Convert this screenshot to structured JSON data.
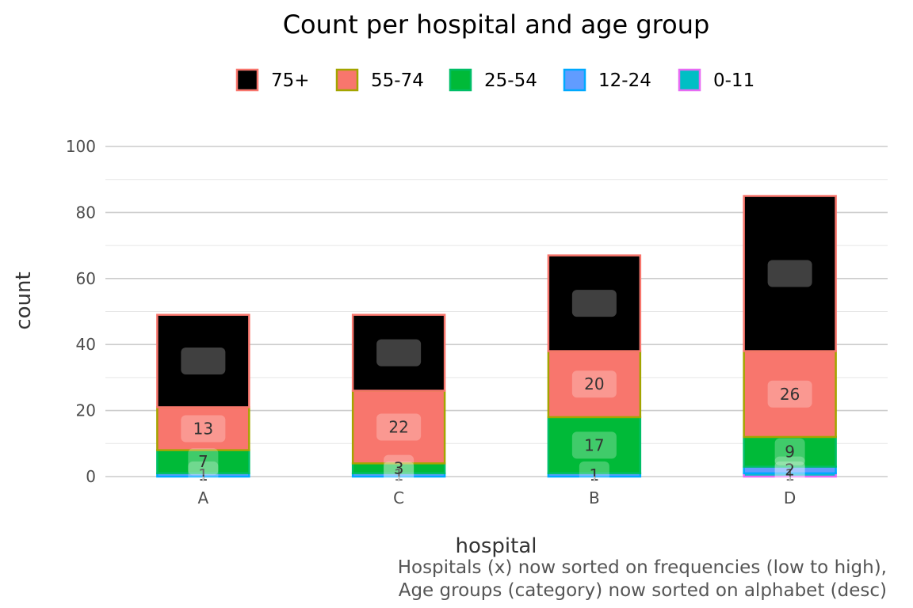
{
  "chart_data": {
    "type": "bar",
    "stacked": true,
    "title": "Count per hospital and age group",
    "xlabel": "hospital",
    "ylabel": "count",
    "ylim": [
      0,
      100
    ],
    "yticks": [
      0,
      20,
      40,
      60,
      80,
      100
    ],
    "grid": true,
    "legend_position": "top",
    "categories": [
      "A",
      "C",
      "B",
      "D"
    ],
    "series": [
      {
        "name": "0-11",
        "values": [
          0,
          0,
          0,
          1
        ],
        "fill": "#00BFC4",
        "outline": "#E76BF3"
      },
      {
        "name": "12-24",
        "values": [
          1,
          1,
          1,
          2
        ],
        "fill": "#619CFF",
        "outline": "#00A9FF"
      },
      {
        "name": "25-54",
        "values": [
          7,
          3,
          17,
          9
        ],
        "fill": "#00BA38",
        "outline": "#00BE67"
      },
      {
        "name": "55-74",
        "values": [
          13,
          22,
          20,
          26
        ],
        "fill": "#F8766D",
        "outline": "#A3A500"
      },
      {
        "name": "75+",
        "values": [
          28,
          23,
          29,
          47
        ],
        "fill": "#000000",
        "outline": "#F8766D"
      }
    ],
    "legend_order": [
      "75+",
      "55-74",
      "25-54",
      "12-24",
      "0-11"
    ],
    "caption": [
      "Hospitals (x) now sorted on frequencies (low to high),",
      "Age groups (category) now sorted on alphabet (desc)"
    ]
  }
}
